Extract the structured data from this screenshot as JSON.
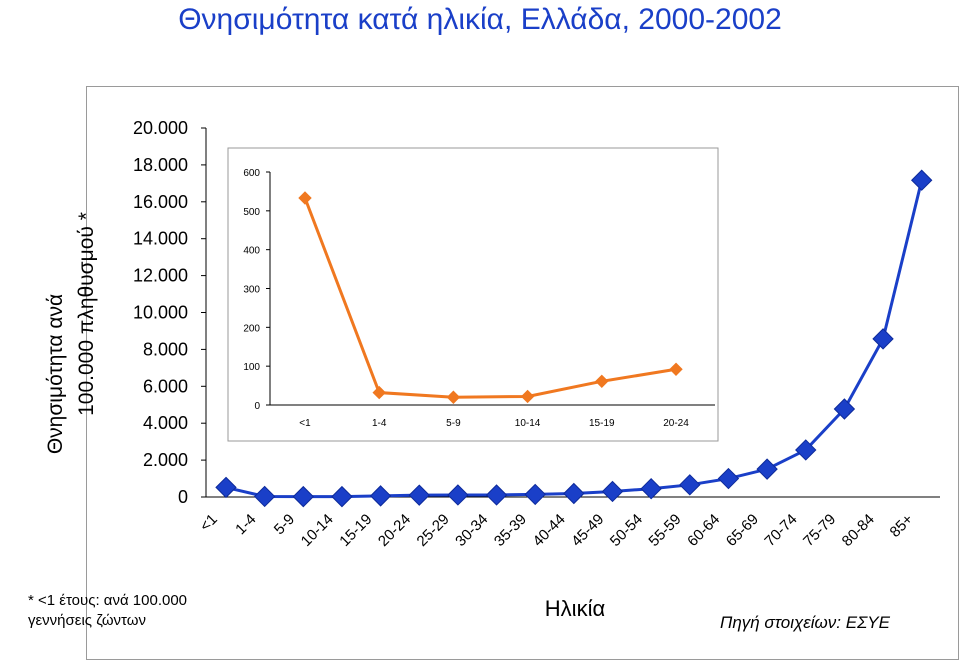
{
  "title": "Θνησιμότητα κατά ηλικία, Ελλάδα, 2000-2002",
  "footnote_line1": "* <1 έτους: ανά 100.000",
  "footnote_line2": "γεννήσεις ζώντων",
  "source": "Πηγή στοιχείων: ΕΣΥΕ",
  "chart_data": [
    {
      "type": "line",
      "ylabel_line1": "Θνησιμότητα ανά",
      "ylabel_line2": "100.000 πληθυσμού *",
      "xlabel": "Ηλικία",
      "ylim": [
        0,
        20000
      ],
      "yticks": [
        0,
        2000,
        4000,
        6000,
        8000,
        10000,
        12000,
        14000,
        16000,
        18000,
        20000
      ],
      "ytick_labels": [
        "0",
        "2.000",
        "4.000",
        "6.000",
        "8.000",
        "10.000",
        "12.000",
        "14.000",
        "16.000",
        "18.000",
        "20.000"
      ],
      "grid": false,
      "categories": [
        "<1",
        "1-4",
        "5-9",
        "10-14",
        "15-19",
        "20-24",
        "25-29",
        "30-34",
        "35-39",
        "40-44",
        "45-49",
        "50-54",
        "55-59",
        "60-64",
        "65-69",
        "70-74",
        "75-79",
        "80-84",
        "85+"
      ],
      "series": [
        {
          "color": "#1a3fc8",
          "marker": "diamond",
          "values": [
            520,
            30,
            20,
            20,
            60,
            100,
            110,
            110,
            140,
            190,
            300,
            450,
            660,
            1000,
            1510,
            2550,
            4770,
            8570,
            17170
          ]
        }
      ]
    },
    {
      "type": "line",
      "inset": true,
      "ylim": [
        0,
        600
      ],
      "yticks": [
        0,
        100,
        200,
        300,
        400,
        500,
        600
      ],
      "ytick_labels": [
        "0",
        "100",
        "200",
        "300",
        "400",
        "500",
        "600"
      ],
      "grid": false,
      "categories": [
        "<1",
        "1-4",
        "5-9",
        "10-14",
        "15-19",
        "20-24"
      ],
      "series": [
        {
          "color": "#f07820",
          "marker": "diamond",
          "values": [
            533,
            32,
            20,
            22,
            61,
            92
          ]
        }
      ]
    }
  ]
}
